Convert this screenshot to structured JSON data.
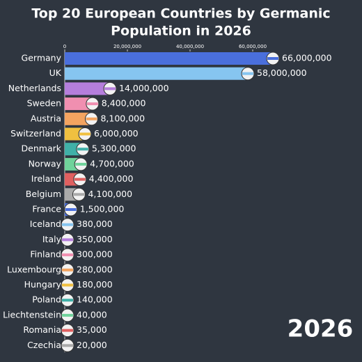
{
  "chart_data": {
    "type": "bar",
    "orientation": "horizontal",
    "title": "Top 20 European Countries by Germanic",
    "subtitle": "Population in 2026",
    "annotation": "2026",
    "categories": [
      "Germany",
      "UK",
      "Netherlands",
      "Sweden",
      "Austria",
      "Switzerland",
      "Denmark",
      "Norway",
      "Ireland",
      "Belgium",
      "France",
      "Iceland",
      "Italy",
      "Finland",
      "Luxembourg",
      "Hungary",
      "Poland",
      "Liechtenstein",
      "Romania",
      "Czechia"
    ],
    "values": [
      66000000,
      58000000,
      14000000,
      8400000,
      8100000,
      6000000,
      5300000,
      4700000,
      4400000,
      4100000,
      1500000,
      380000,
      350000,
      300000,
      280000,
      180000,
      140000,
      40000,
      35000,
      20000
    ],
    "value_labels": [
      "66,000,000",
      "58,000,000",
      "14,000,000",
      "8,400,000",
      "8,100,000",
      "6,000,000",
      "5,300,000",
      "4,700,000",
      "4,400,000",
      "4,100,000",
      "1,500,000",
      "380,000",
      "350,000",
      "300,000",
      "280,000",
      "180,000",
      "140,000",
      "40,000",
      "35,000",
      "20,000"
    ],
    "colors": [
      "#4a6fdc",
      "#86c5f0",
      "#b57edc",
      "#f08fb0",
      "#f4a460",
      "#f0c040",
      "#40b0a8",
      "#6fd39b",
      "#e06060",
      "#aaaaaa",
      "#4a6fdc",
      "#86c5f0",
      "#b57edc",
      "#f08fb0",
      "#f4a460",
      "#f0c040",
      "#40b0a8",
      "#6fd39b",
      "#e06060",
      "#aaaaaa"
    ],
    "xlim": [
      0,
      66000000
    ],
    "xticks": [
      0,
      {
        "value": 20000000,
        "label": "20,000,000"
      },
      {
        "value": 40000000,
        "label": "40,000,000"
      },
      {
        "value": 60000000,
        "label": "60,000,000"
      }
    ]
  }
}
